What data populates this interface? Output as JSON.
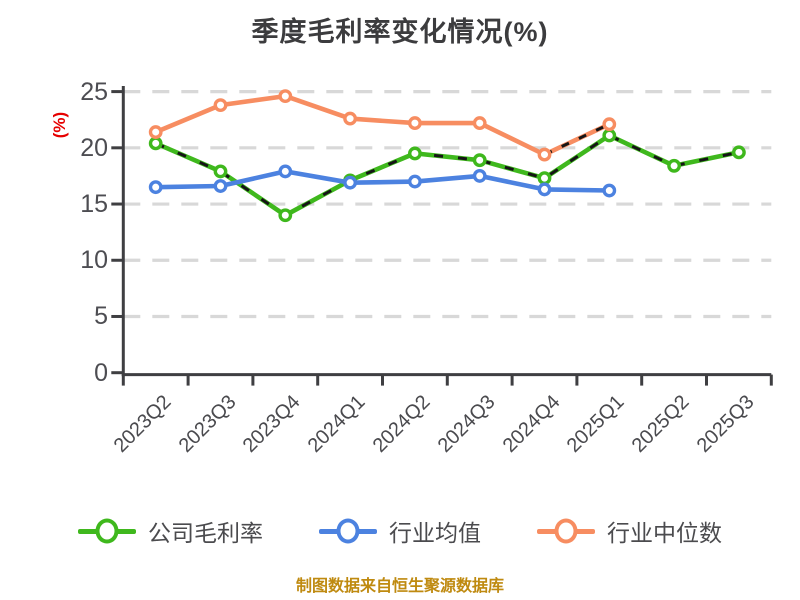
{
  "chart_data": {
    "type": "line",
    "title": "季度毛利率变化情况(%)",
    "ylabel": "(%)",
    "source_note": "制图数据来自恒生聚源数据库",
    "categories": [
      "2023Q2",
      "2023Q3",
      "2023Q4",
      "2024Q1",
      "2024Q2",
      "2024Q3",
      "2024Q4",
      "2025Q1",
      "2025Q2",
      "2025Q3"
    ],
    "series": [
      {
        "name": "公司毛利率",
        "color": "#3fb81d",
        "dash_overlay": "all",
        "values": [
          20.4,
          17.9,
          14.0,
          17.1,
          19.5,
          18.9,
          17.3,
          21.1,
          18.4,
          19.6
        ]
      },
      {
        "name": "行业均值",
        "color": "#4c82e0",
        "dash_overlay": "none",
        "values": [
          16.5,
          16.6,
          17.9,
          16.9,
          17.0,
          17.5,
          16.3,
          16.2,
          null,
          null
        ]
      },
      {
        "name": "行业中位数",
        "color": "#f78d61",
        "dash_overlay": "last-segment",
        "values": [
          21.4,
          23.8,
          24.6,
          22.6,
          22.2,
          22.2,
          19.4,
          22.1,
          null,
          null
        ]
      }
    ],
    "ylim": [
      0,
      25
    ],
    "yticks": [
      0,
      5,
      10,
      15,
      20,
      25
    ],
    "grid": "horizontal-dashed",
    "legend_position": "bottom",
    "marker": "circle-white-fill",
    "colors": {
      "ylabel": "#e60000",
      "source_note": "#bf8a10",
      "gridline": "#d8d8d8",
      "axis": "#3f3f42",
      "tick_label": "#4d4d52",
      "overlay_dash": "#151515"
    }
  }
}
